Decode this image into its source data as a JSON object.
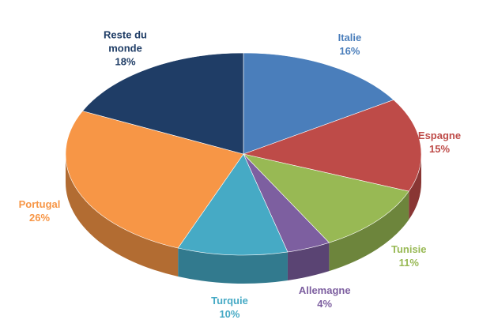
{
  "chart_data": {
    "type": "pie",
    "categories": [
      "Italie",
      "Espagne",
      "Tunisie",
      "Allemagne",
      "Turquie",
      "Portugal",
      "Reste du monde"
    ],
    "values": [
      16,
      15,
      11,
      4,
      10,
      26,
      18
    ],
    "value_labels": [
      "16%",
      "15%",
      "11%",
      "4%",
      "10%",
      "26%",
      "18%"
    ],
    "colors": [
      "#4a7ebb",
      "#be4b48",
      "#98b954",
      "#7d5fa0",
      "#46aac5",
      "#f79646",
      "#1f3d66"
    ]
  }
}
